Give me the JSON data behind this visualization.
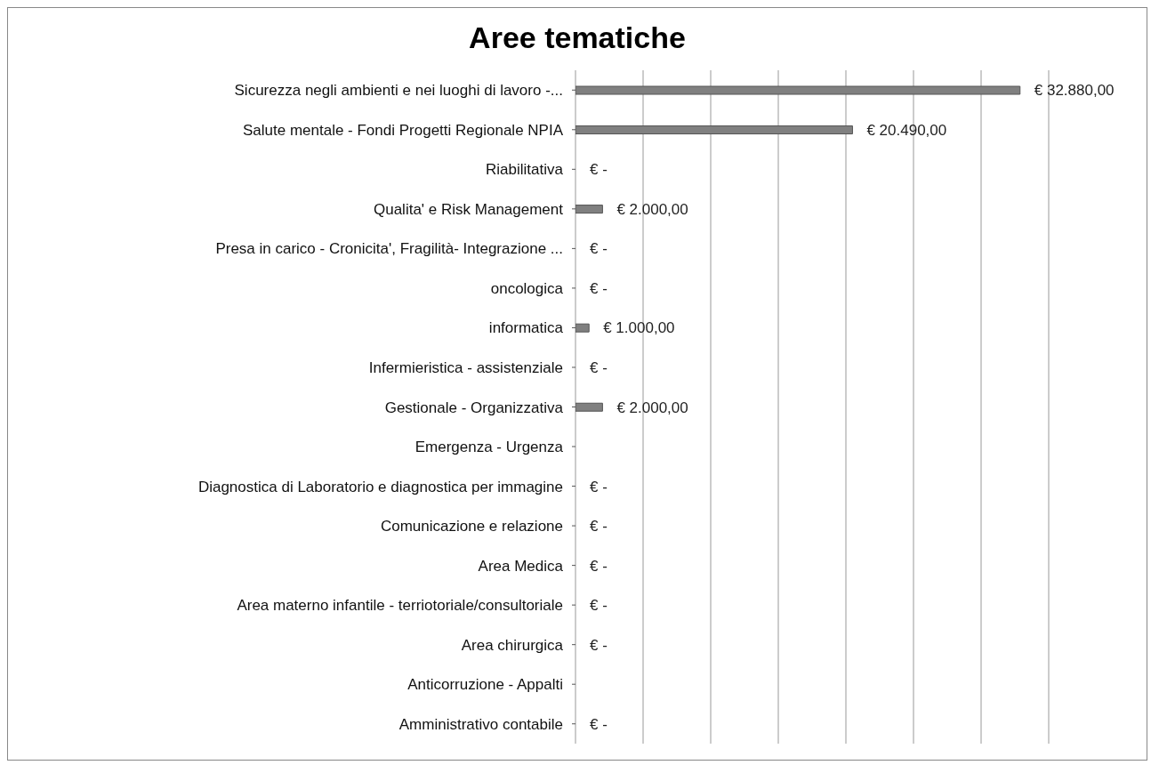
{
  "chart_data": {
    "type": "bar",
    "orientation": "horizontal",
    "title": "Aree tematiche",
    "categories": [
      "Sicurezza negli ambienti e nei luoghi di lavoro -...",
      "Salute mentale - Fondi Progetti Regionale NPIA",
      "Riabilitativa",
      "Qualita' e Risk Management",
      "Presa in carico - Cronicita', Fragilità- Integrazione ...",
      "oncologica",
      "informatica",
      "Infermieristica - assistenziale",
      "Gestionale - Organizzativa",
      "Emergenza - Urgenza",
      "Diagnostica di Laboratorio e diagnostica per immagine",
      "Comunicazione e relazione",
      "Area Medica",
      "Area materno infantile - terriotoriale/consultoriale",
      "Area chirurgica",
      "Anticorruzione - Appalti",
      "Amministrativo contabile"
    ],
    "values": [
      32880,
      20490,
      0,
      2000,
      0,
      0,
      1000,
      0,
      2000,
      null,
      0,
      0,
      0,
      0,
      0,
      null,
      0
    ],
    "value_labels": [
      "€ 32.880,00",
      "€ 20.490,00",
      "€ -",
      "€ 2.000,00",
      "€ -",
      "€ -",
      "€ 1.000,00",
      "€ -",
      "€ 2.000,00",
      null,
      "€ -",
      "€ -",
      "€ -",
      "€ -",
      "€ -",
      null,
      "€ -"
    ],
    "color": "#808080",
    "xlim": [
      0,
      35000
    ],
    "xticks": [
      {
        "value": 0,
        "label": null
      },
      {
        "value": 5000,
        "label": null
      },
      {
        "value": 10000,
        "label": null
      },
      {
        "value": 15000,
        "label": null
      },
      {
        "value": 20000,
        "label": null
      },
      {
        "value": 25000,
        "label": null
      },
      {
        "value": 30000,
        "label": null
      },
      {
        "value": 35000,
        "label": null
      }
    ],
    "grid": "x",
    "tick_labels": "y",
    "legend": false
  }
}
